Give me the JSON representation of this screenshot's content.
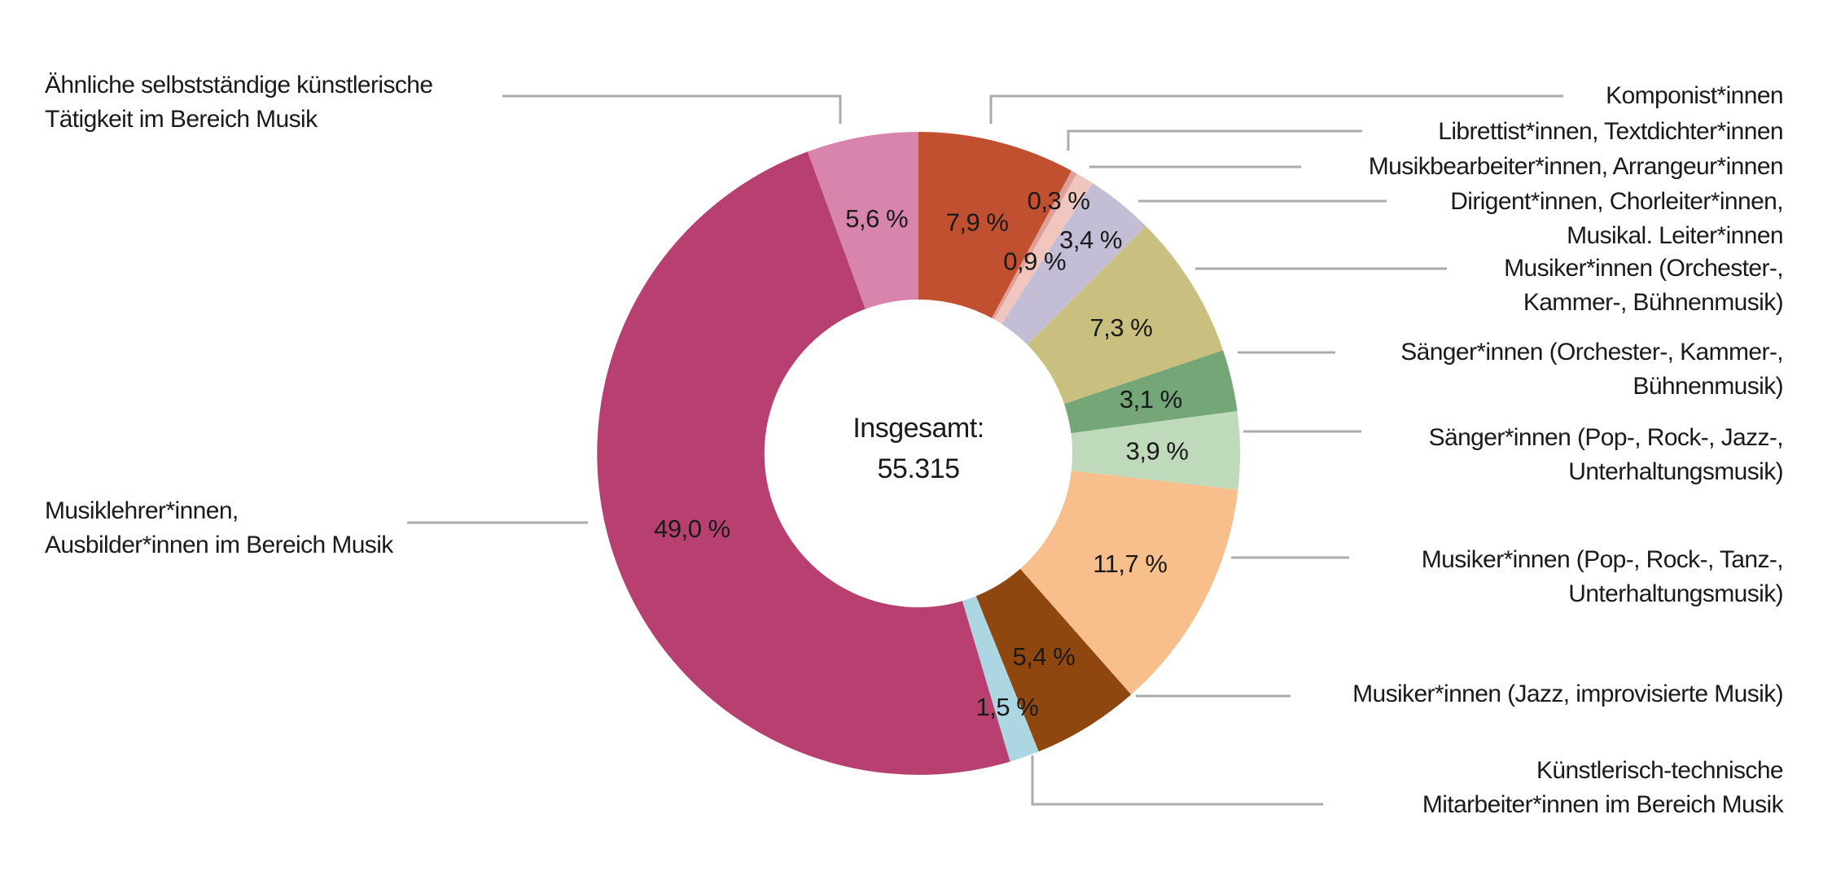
{
  "chart_data": {
    "type": "pie",
    "subtype": "donut",
    "title": "",
    "center_text": {
      "line1": "Insgesamt:",
      "line2": "55.315"
    },
    "total": "55.315",
    "unit": "%",
    "decimal_style": "comma",
    "legend_position": "callout-labels",
    "colors": {
      "text": "#1a1a1a",
      "leader_line": "#ababab",
      "background": "#ffffff"
    },
    "segments": [
      {
        "label": "Komponist*innen",
        "value": 7.9,
        "display": "7,9 %",
        "color": "#C05030"
      },
      {
        "label": "Librettist*innen, Textdichter*innen",
        "value": 0.3,
        "display": "0,3 %",
        "color": "#DFA098"
      },
      {
        "label": "Musikbearbeiter*innen, Arrangeur*innen",
        "value": 0.9,
        "display": "0,9 %",
        "color": "#F0C6BE"
      },
      {
        "label": "Dirigent*innen, Chorleiter*innen,\nMusikal. Leiter*innen",
        "value": 3.4,
        "display": "3,4 %",
        "color": "#C4BDD6"
      },
      {
        "label": "Musiker*innen (Orchester-,\nKammer-, Bühnenmusik)",
        "value": 7.3,
        "display": "7,3 %",
        "color": "#C9C07F"
      },
      {
        "label": "Sänger*innen (Orchester-, Kammer-,\nBühnenmusik)",
        "value": 3.1,
        "display": "3,1 %",
        "color": "#74A677"
      },
      {
        "label": "Sänger*innen (Pop-, Rock-, Jazz-,\nUnterhaltungsmusik)",
        "value": 3.9,
        "display": "3,9 %",
        "color": "#BEDABB"
      },
      {
        "label": "Musiker*innen (Pop-, Rock-, Tanz-,\nUnterhaltungsmusik)",
        "value": 11.7,
        "display": "11,7 %",
        "color": "#F8BF8D"
      },
      {
        "label": "Musiker*innen (Jazz, improvisierte Musik)",
        "value": 5.4,
        "display": "5,4 %",
        "color": "#8F470F"
      },
      {
        "label": "Künstlerisch-technische\nMitarbeiter*innen im Bereich Musik",
        "value": 1.5,
        "display": "1,5 %",
        "color": "#ADD6E3"
      },
      {
        "label": "Musiklehrer*innen,\nAusbilder*innen im Bereich Musik",
        "value": 49.0,
        "display": "49,0 %",
        "color": "#B74070"
      },
      {
        "label": "Ähnliche selbstständige künstlerische\nTätigkeit im Bereich Musik",
        "value": 5.6,
        "display": "5,6 %",
        "color": "#D885AE"
      }
    ]
  }
}
